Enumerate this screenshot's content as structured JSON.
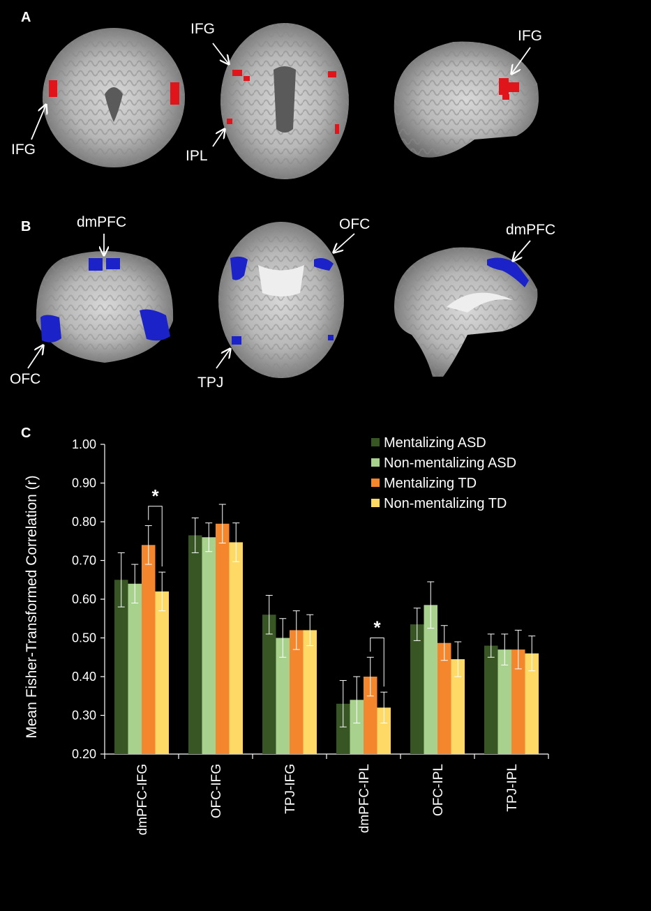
{
  "panels": {
    "a": "A",
    "b": "B",
    "c": "C"
  },
  "panel_a_labels": {
    "ifg_coronal": "IFG",
    "ifg_axial": "IFG",
    "ipl_axial": "IPL",
    "ifg_sagittal": "IFG"
  },
  "panel_b_labels": {
    "dmpfc_coronal": "dmPFC",
    "ofc_coronal": "OFC",
    "ofc_axial": "OFC",
    "tpj_axial": "TPJ",
    "dmpfc_sagittal": "dmPFC"
  },
  "colors": {
    "activation_red": "#e0151b",
    "activation_blue": "#1a22c8",
    "mentalizing_asd": "#375623",
    "non_mentalizing_asd": "#a9d18e",
    "mentalizing_td": "#f4872e",
    "non_mentalizing_td": "#ffd966"
  },
  "chart_data": {
    "type": "bar",
    "ylabel": "Mean Fisher-Transformed Correlation (r)",
    "ylim": [
      0.2,
      1.0
    ],
    "yticks": [
      "0.20",
      "0.30",
      "0.40",
      "0.50",
      "0.60",
      "0.70",
      "0.80",
      "0.90",
      "1.00"
    ],
    "categories": [
      "dmPFC-IFG",
      "OFC-IFG",
      "TPJ-IFG",
      "dmPFC-IPL",
      "OFC-IPL",
      "TPJ-IPL"
    ],
    "legend_position": "top-right",
    "series": [
      {
        "name": "Mentalizing ASD",
        "values": [
          0.65,
          0.765,
          0.56,
          0.33,
          0.535,
          0.48
        ],
        "errors": [
          0.07,
          0.045,
          0.05,
          0.06,
          0.042,
          0.03
        ]
      },
      {
        "name": "Non-mentalizing ASD",
        "values": [
          0.64,
          0.76,
          0.5,
          0.34,
          0.585,
          0.47
        ],
        "errors": [
          0.05,
          0.037,
          0.05,
          0.06,
          0.06,
          0.04
        ]
      },
      {
        "name": "Mentalizing TD",
        "values": [
          0.74,
          0.795,
          0.52,
          0.4,
          0.487,
          0.47
        ],
        "errors": [
          0.05,
          0.05,
          0.05,
          0.05,
          0.045,
          0.05
        ]
      },
      {
        "name": "Non-mentalizing TD",
        "values": [
          0.62,
          0.747,
          0.52,
          0.32,
          0.445,
          0.46
        ],
        "errors": [
          0.05,
          0.05,
          0.04,
          0.04,
          0.045,
          0.045
        ]
      }
    ],
    "significance": [
      {
        "category": "dmPFC-IFG",
        "between": [
          "Mentalizing TD",
          "Non-mentalizing TD"
        ],
        "label": "*"
      },
      {
        "category": "dmPFC-IPL",
        "between": [
          "Mentalizing TD",
          "Non-mentalizing TD"
        ],
        "label": "*"
      }
    ]
  }
}
